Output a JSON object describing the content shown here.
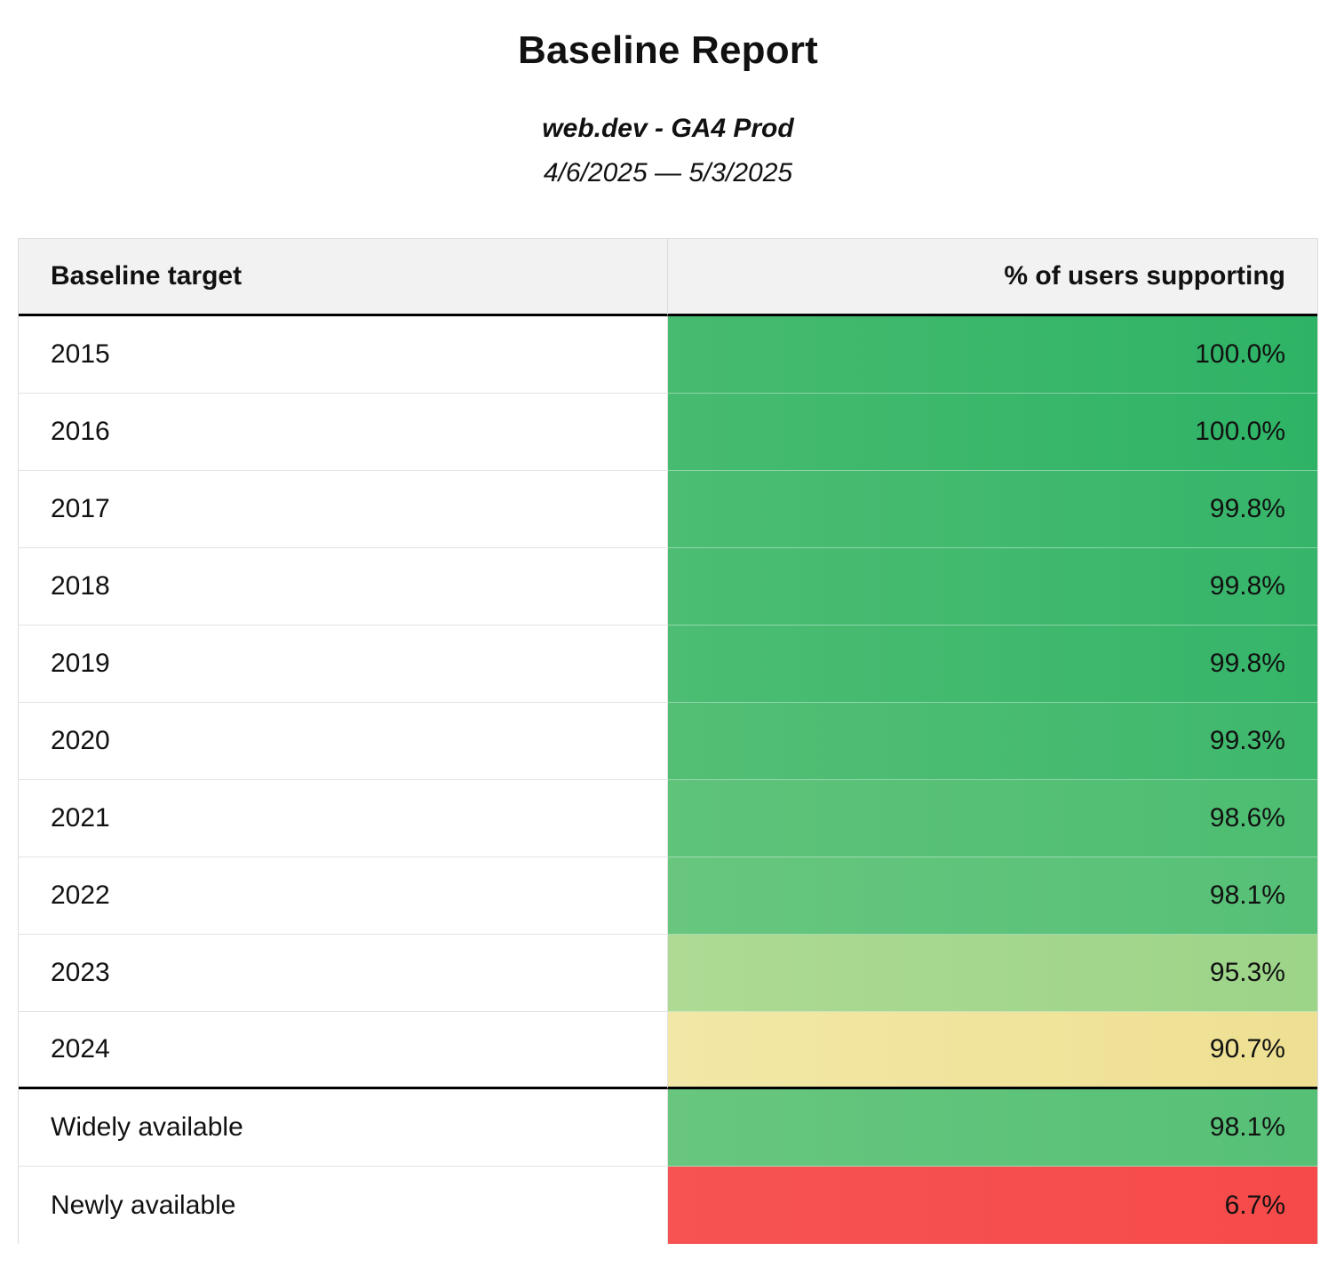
{
  "page": {
    "title": "Baseline Report",
    "subtitle": "web.dev - GA4 Prod",
    "date_range": "4/6/2025 — 5/3/2025"
  },
  "table": {
    "headers": {
      "target": "Baseline target",
      "support": "% of users supporting"
    },
    "rows": [
      {
        "label": "2015",
        "value": "100.0%",
        "color_left": "#47bb6f",
        "color_right": "#2eb366"
      },
      {
        "label": "2016",
        "value": "100.0%",
        "color_left": "#47bb6f",
        "color_right": "#2eb366"
      },
      {
        "label": "2017",
        "value": "99.8%",
        "color_left": "#4cbd72",
        "color_right": "#36b56a"
      },
      {
        "label": "2018",
        "value": "99.8%",
        "color_left": "#4cbd72",
        "color_right": "#36b56a"
      },
      {
        "label": "2019",
        "value": "99.8%",
        "color_left": "#4cbd72",
        "color_right": "#36b56a"
      },
      {
        "label": "2020",
        "value": "99.3%",
        "color_left": "#53bf75",
        "color_right": "#3eb86d"
      },
      {
        "label": "2021",
        "value": "98.6%",
        "color_left": "#5fc37a",
        "color_right": "#4cbd72"
      },
      {
        "label": "2022",
        "value": "98.1%",
        "color_left": "#68c67e",
        "color_right": "#56c077"
      },
      {
        "label": "2023",
        "value": "95.3%",
        "color_left": "#aeda94",
        "color_right": "#9cd488"
      },
      {
        "label": "2024",
        "value": "90.7%",
        "color_left": "#f2e7a6",
        "color_right": "#eee092"
      },
      {
        "label": "Widely available",
        "value": "98.1%",
        "color_left": "#68c67e",
        "color_right": "#56c077"
      },
      {
        "label": "Newly available",
        "value": "6.7%",
        "color_left": "#f75353",
        "color_right": "#f64a4a"
      }
    ]
  },
  "chart_data": {
    "type": "table",
    "title": "Baseline Report",
    "subtitle": "web.dev - GA4 Prod",
    "date_range": "4/6/2025 — 5/3/2025",
    "columns": [
      "Baseline target",
      "% of users supporting"
    ],
    "rows": [
      {
        "target": "2015",
        "percent": 100.0
      },
      {
        "target": "2016",
        "percent": 100.0
      },
      {
        "target": "2017",
        "percent": 99.8
      },
      {
        "target": "2018",
        "percent": 99.8
      },
      {
        "target": "2019",
        "percent": 99.8
      },
      {
        "target": "2020",
        "percent": 99.3
      },
      {
        "target": "2021",
        "percent": 98.6
      },
      {
        "target": "2022",
        "percent": 98.1
      },
      {
        "target": "2023",
        "percent": 95.3
      },
      {
        "target": "2024",
        "percent": 90.7
      },
      {
        "target": "Widely available",
        "percent": 98.1
      },
      {
        "target": "Newly available",
        "percent": 6.7
      }
    ],
    "layout": {
      "color_scale": "green (high %) through yellow to red (low %)",
      "thick_separator_after_row": "2024"
    }
  }
}
